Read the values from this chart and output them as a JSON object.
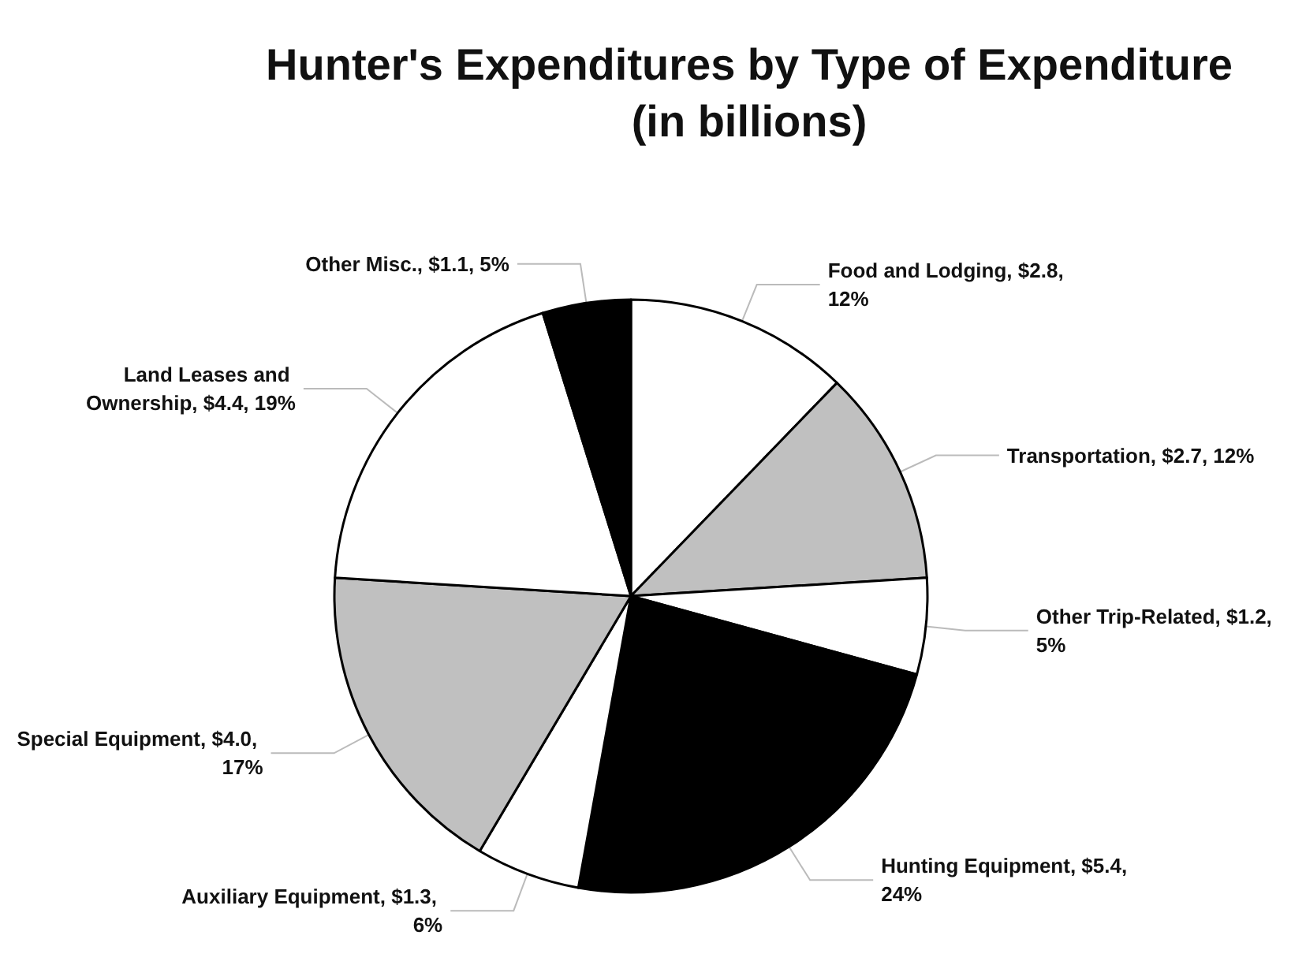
{
  "chart_data": {
    "type": "pie",
    "title": "Hunter's Expenditures by Type of Expenditure\n(in billions)",
    "categories": [
      "Food and Lodging",
      "Transportation",
      "Other Trip-Related",
      "Hunting Equipment",
      "Auxiliary Equipment",
      "Special Equipment",
      "Land Leases and Ownership",
      "Other Misc."
    ],
    "values": [
      2.8,
      2.7,
      1.2,
      5.4,
      1.3,
      4.0,
      4.4,
      1.1
    ],
    "value_labels": [
      "$2.8, 12%",
      "$2.7, 12%",
      "$1.2, 5%",
      "$5.4, 24%",
      "$1.3, 6%",
      "$4.0, 17%",
      "$4.4, 19%",
      "$1.1, 5%"
    ],
    "colors": [
      "#ffffff",
      "#c0c0c0",
      "#ffffff",
      "#000000",
      "#ffffff",
      "#c0c0c0",
      "#ffffff",
      "#000000"
    ],
    "legend": false
  }
}
